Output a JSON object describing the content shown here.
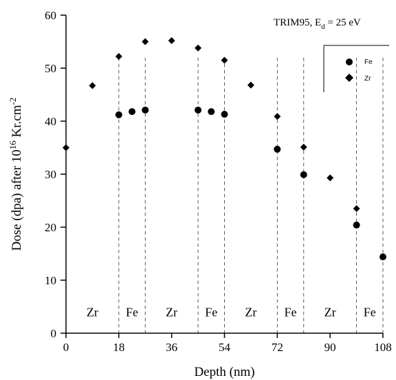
{
  "chart_data": {
    "type": "scatter",
    "xlabel": "Depth (nm)",
    "ylabel": {
      "pre": "Dose (dpa) after 10",
      "sup1": "16",
      "mid": " Kr.cm",
      "sup2": "-2"
    },
    "xlim": [
      0,
      108
    ],
    "ylim": [
      0,
      60
    ],
    "xticks": [
      0,
      18,
      36,
      54,
      72,
      90,
      108
    ],
    "yticks": [
      0,
      10,
      20,
      30,
      40,
      50,
      60
    ],
    "annotation": {
      "main": "TRIM95, E",
      "sub": "d",
      "tail": " = 25 eV"
    },
    "legend": {
      "position": "top-right",
      "entries": [
        "Fe",
        "Zr"
      ]
    },
    "series": [
      {
        "name": "Fe",
        "marker": "circle",
        "x": [
          18,
          22.5,
          27,
          45,
          49.5,
          54,
          72,
          81,
          99,
          108
        ],
        "y": [
          41.2,
          41.8,
          42.1,
          42.1,
          41.8,
          41.3,
          34.7,
          29.9,
          20.4,
          14.4
        ]
      },
      {
        "name": "Zr",
        "marker": "diamond",
        "x": [
          0,
          9,
          18,
          27,
          36,
          45,
          54,
          63,
          72,
          81,
          90,
          99
        ],
        "y": [
          35.0,
          46.7,
          52.2,
          55.0,
          55.2,
          53.8,
          51.5,
          46.8,
          40.9,
          35.1,
          29.3,
          23.5
        ]
      }
    ],
    "layers": [
      {
        "label": "Zr",
        "from": 0,
        "to": 18
      },
      {
        "label": "Fe",
        "from": 18,
        "to": 27
      },
      {
        "label": "Zr",
        "from": 27,
        "to": 45
      },
      {
        "label": "Fe",
        "from": 45,
        "to": 54
      },
      {
        "label": "Zr",
        "from": 54,
        "to": 72
      },
      {
        "label": "Fe",
        "from": 72,
        "to": 81
      },
      {
        "label": "Zr",
        "from": 81,
        "to": 99
      },
      {
        "label": "Fe",
        "from": 99,
        "to": 108
      }
    ],
    "boundaries": [
      18,
      27,
      45,
      54,
      72,
      81,
      99,
      108
    ]
  }
}
